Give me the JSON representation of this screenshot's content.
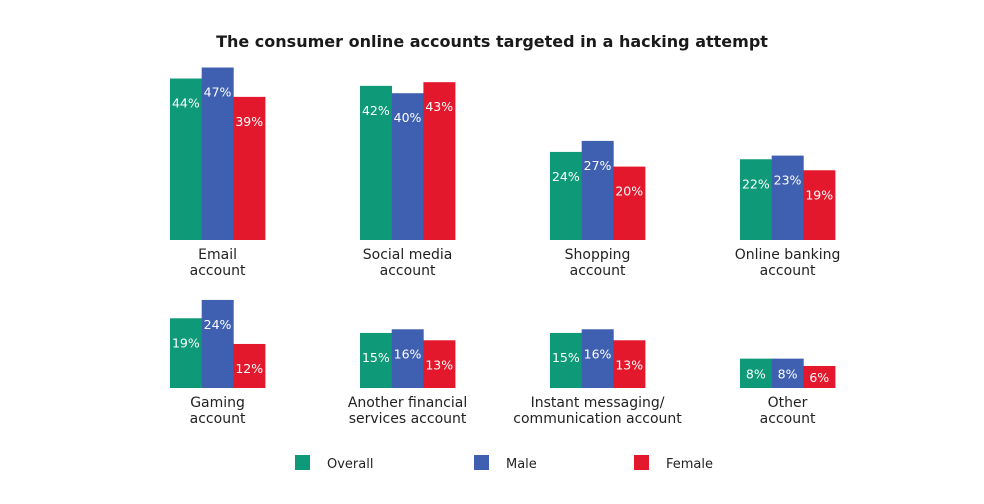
{
  "chart_data": {
    "type": "bar",
    "title": "The consumer online accounts targeted in a hacking attempt",
    "unit": "%",
    "categories": [
      [
        "Email",
        "account"
      ],
      [
        "Social media",
        "account"
      ],
      [
        "Shopping",
        "account"
      ],
      [
        "Online banking",
        "account"
      ],
      [
        "Gaming",
        "account"
      ],
      [
        "Another financial",
        "services account"
      ],
      [
        "Instant messaging/",
        "communication account"
      ],
      [
        "Other",
        "account"
      ]
    ],
    "series": [
      {
        "name": "Overall",
        "color": "#0e9a78",
        "values": [
          44,
          42,
          24,
          22,
          19,
          15,
          15,
          8
        ]
      },
      {
        "name": "Male",
        "color": "#3f5fb0",
        "values": [
          47,
          40,
          27,
          23,
          24,
          16,
          16,
          8
        ]
      },
      {
        "name": "Female",
        "color": "#e3182c",
        "values": [
          39,
          43,
          20,
          19,
          12,
          13,
          13,
          6
        ]
      }
    ],
    "legend": "bottom",
    "grid": false,
    "ylim": [
      0,
      50
    ]
  }
}
